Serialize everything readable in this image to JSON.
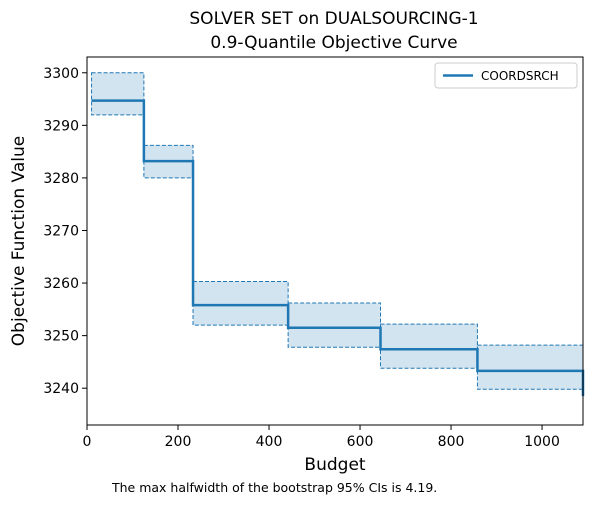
{
  "chart_data": {
    "type": "line",
    "title": "SOLVER SET on DUALSOURCING-1",
    "subtitle": "0.9-Quantile Objective Curve",
    "xlabel": "Budget",
    "ylabel": "Objective Function Value",
    "xlim": [
      0,
      1090
    ],
    "ylim": [
      3233,
      3303
    ],
    "xticks": [
      0,
      200,
      400,
      600,
      800,
      1000
    ],
    "yticks": [
      3240,
      3250,
      3260,
      3270,
      3280,
      3290,
      3300
    ],
    "grid": false,
    "legend_position": "top-right",
    "series": [
      {
        "name": "COORDSRCH",
        "color": "#1f77b4",
        "steps": [
          {
            "x0": 10,
            "x1": 125,
            "y": 3294.7,
            "lo": 3292.0,
            "hi": 3300.0
          },
          {
            "x0": 125,
            "x1": 233,
            "y": 3283.2,
            "lo": 3280.0,
            "hi": 3286.2
          },
          {
            "x0": 233,
            "x1": 442,
            "y": 3255.8,
            "lo": 3252.0,
            "hi": 3260.3
          },
          {
            "x0": 442,
            "x1": 645,
            "y": 3251.5,
            "lo": 3247.8,
            "hi": 3256.2
          },
          {
            "x0": 645,
            "x1": 858,
            "y": 3247.4,
            "lo": 3243.8,
            "hi": 3252.2
          },
          {
            "x0": 858,
            "x1": 1090,
            "y": 3243.3,
            "lo": 3239.8,
            "hi": 3248.2
          }
        ],
        "final_drop": {
          "x": 1090,
          "y": 3238.5
        }
      }
    ],
    "annotation": "The max halfwidth of the bootstrap 95% CIs is 4.19."
  }
}
